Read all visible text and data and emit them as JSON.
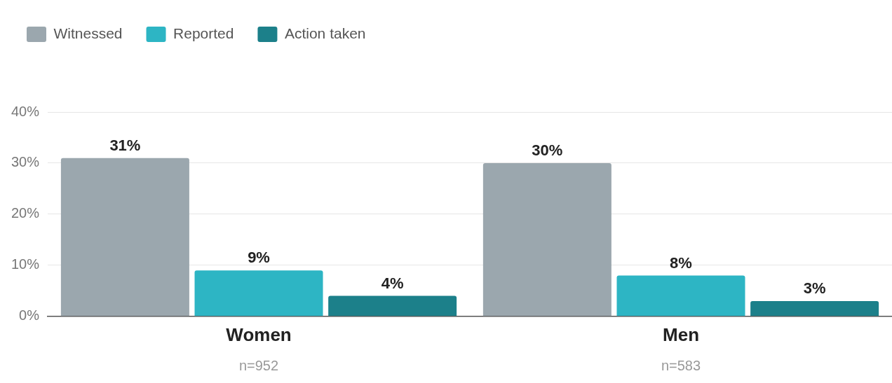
{
  "chart_data": {
    "type": "bar",
    "categories": [
      "Women",
      "Men"
    ],
    "series": [
      {
        "name": "Witnessed",
        "color": "#9ba7ae",
        "values": [
          31,
          30
        ],
        "value_labels": [
          "31%",
          "30%"
        ]
      },
      {
        "name": "Reported",
        "color": "#2db5c4",
        "values": [
          9,
          8
        ],
        "value_labels": [
          "9%",
          "8%"
        ]
      },
      {
        "name": "Action taken",
        "color": "#1c808a",
        "values": [
          4,
          3
        ],
        "value_labels": [
          "4%",
          "3%"
        ]
      }
    ],
    "ylim": [
      0,
      40
    ],
    "yticks": [
      {
        "value": 0,
        "label": "0%"
      },
      {
        "value": 10,
        "label": "10%"
      },
      {
        "value": 20,
        "label": "20%"
      },
      {
        "value": 30,
        "label": "30%"
      },
      {
        "value": 40,
        "label": "40%"
      }
    ],
    "annotations": [
      "n=952",
      "n=583"
    ],
    "grid": "y",
    "legend": "top left"
  }
}
